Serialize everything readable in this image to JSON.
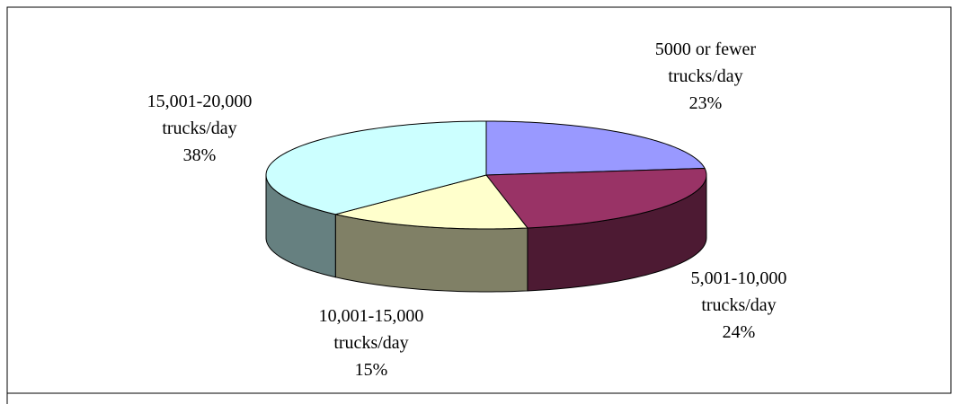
{
  "chart_data": {
    "type": "pie",
    "categories": [
      "5000 or fewer trucks/day",
      "5,001-10,000 trucks/day",
      "10,001-15,000 trucks/day",
      "15,001-20,000 trucks/day"
    ],
    "values": [
      23,
      24,
      15,
      38
    ],
    "value_labels": [
      "23%",
      "24%",
      "15%",
      "38%"
    ],
    "colors": [
      "#9999ff",
      "#993366",
      "#ffffcc",
      "#ccffff"
    ]
  }
}
